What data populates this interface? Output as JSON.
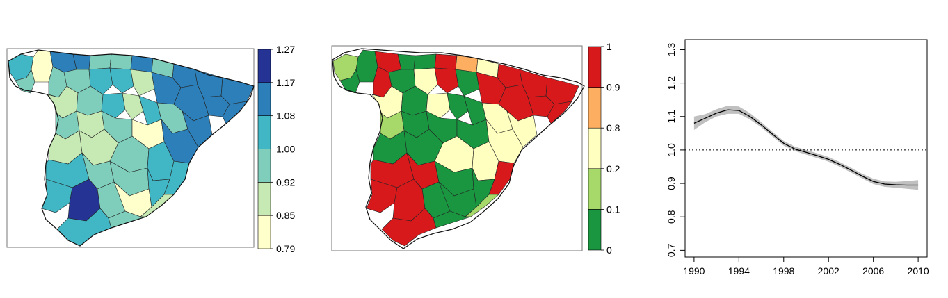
{
  "colors": {
    "map_a_scale": [
      "#ffffcc",
      "#c7e9b4",
      "#7fcdbb",
      "#41b6c4",
      "#2c7fb8",
      "#253494"
    ],
    "map_b_scale": [
      "#1a9641",
      "#a6d96a",
      "#ffffbf",
      "#fdae61",
      "#d7191c"
    ],
    "band": "#c0c0c0",
    "line": "#000000"
  },
  "chart_data": [
    {
      "type": "heatmap",
      "subtype": "choropleth-map",
      "title": "",
      "legend": {
        "breaks": [
          "0.79",
          "0.85",
          "0.92",
          "1.00",
          "1.08",
          "1.17",
          "1.27"
        ],
        "placement": "right"
      }
    },
    {
      "type": "heatmap",
      "subtype": "choropleth-map",
      "title": "",
      "legend": {
        "breaks": [
          "0",
          "0.1",
          "0.2",
          "0.8",
          "0.9",
          "1"
        ],
        "placement": "right"
      }
    },
    {
      "type": "line",
      "title": "",
      "xlabel": "",
      "ylabel": "",
      "xlim": [
        1990,
        2010
      ],
      "ylim": [
        0.7,
        1.3
      ],
      "x_ticks": [
        "1990",
        "1994",
        "1998",
        "2002",
        "2006",
        "2010"
      ],
      "y_ticks": [
        "0.7",
        "0.8",
        "0.9",
        "1.0",
        "1.1",
        "1.2",
        "1.3"
      ],
      "reference_line": 1.0,
      "x": [
        1990,
        1991,
        1992,
        1993,
        1994,
        1995,
        1996,
        1997,
        1998,
        1999,
        2000,
        2001,
        2002,
        2003,
        2004,
        2005,
        2006,
        2007,
        2008,
        2009,
        2010
      ],
      "series": [
        {
          "values": [
            1.08,
            1.095,
            1.11,
            1.12,
            1.118,
            1.1,
            1.075,
            1.047,
            1.02,
            1.003,
            0.993,
            0.983,
            0.972,
            0.957,
            0.94,
            0.922,
            0.906,
            0.898,
            0.896,
            0.895,
            0.895
          ],
          "lower": [
            1.06,
            1.083,
            1.1,
            1.108,
            1.108,
            1.091,
            1.068,
            1.04,
            1.013,
            0.997,
            0.986,
            0.976,
            0.965,
            0.95,
            0.933,
            0.915,
            0.898,
            0.89,
            0.887,
            0.884,
            0.881
          ],
          "upper": [
            1.1,
            1.107,
            1.122,
            1.132,
            1.13,
            1.11,
            1.083,
            1.054,
            1.027,
            1.01,
            1.0,
            0.99,
            0.979,
            0.964,
            0.947,
            0.929,
            0.914,
            0.906,
            0.905,
            0.907,
            0.91
          ]
        }
      ]
    }
  ]
}
